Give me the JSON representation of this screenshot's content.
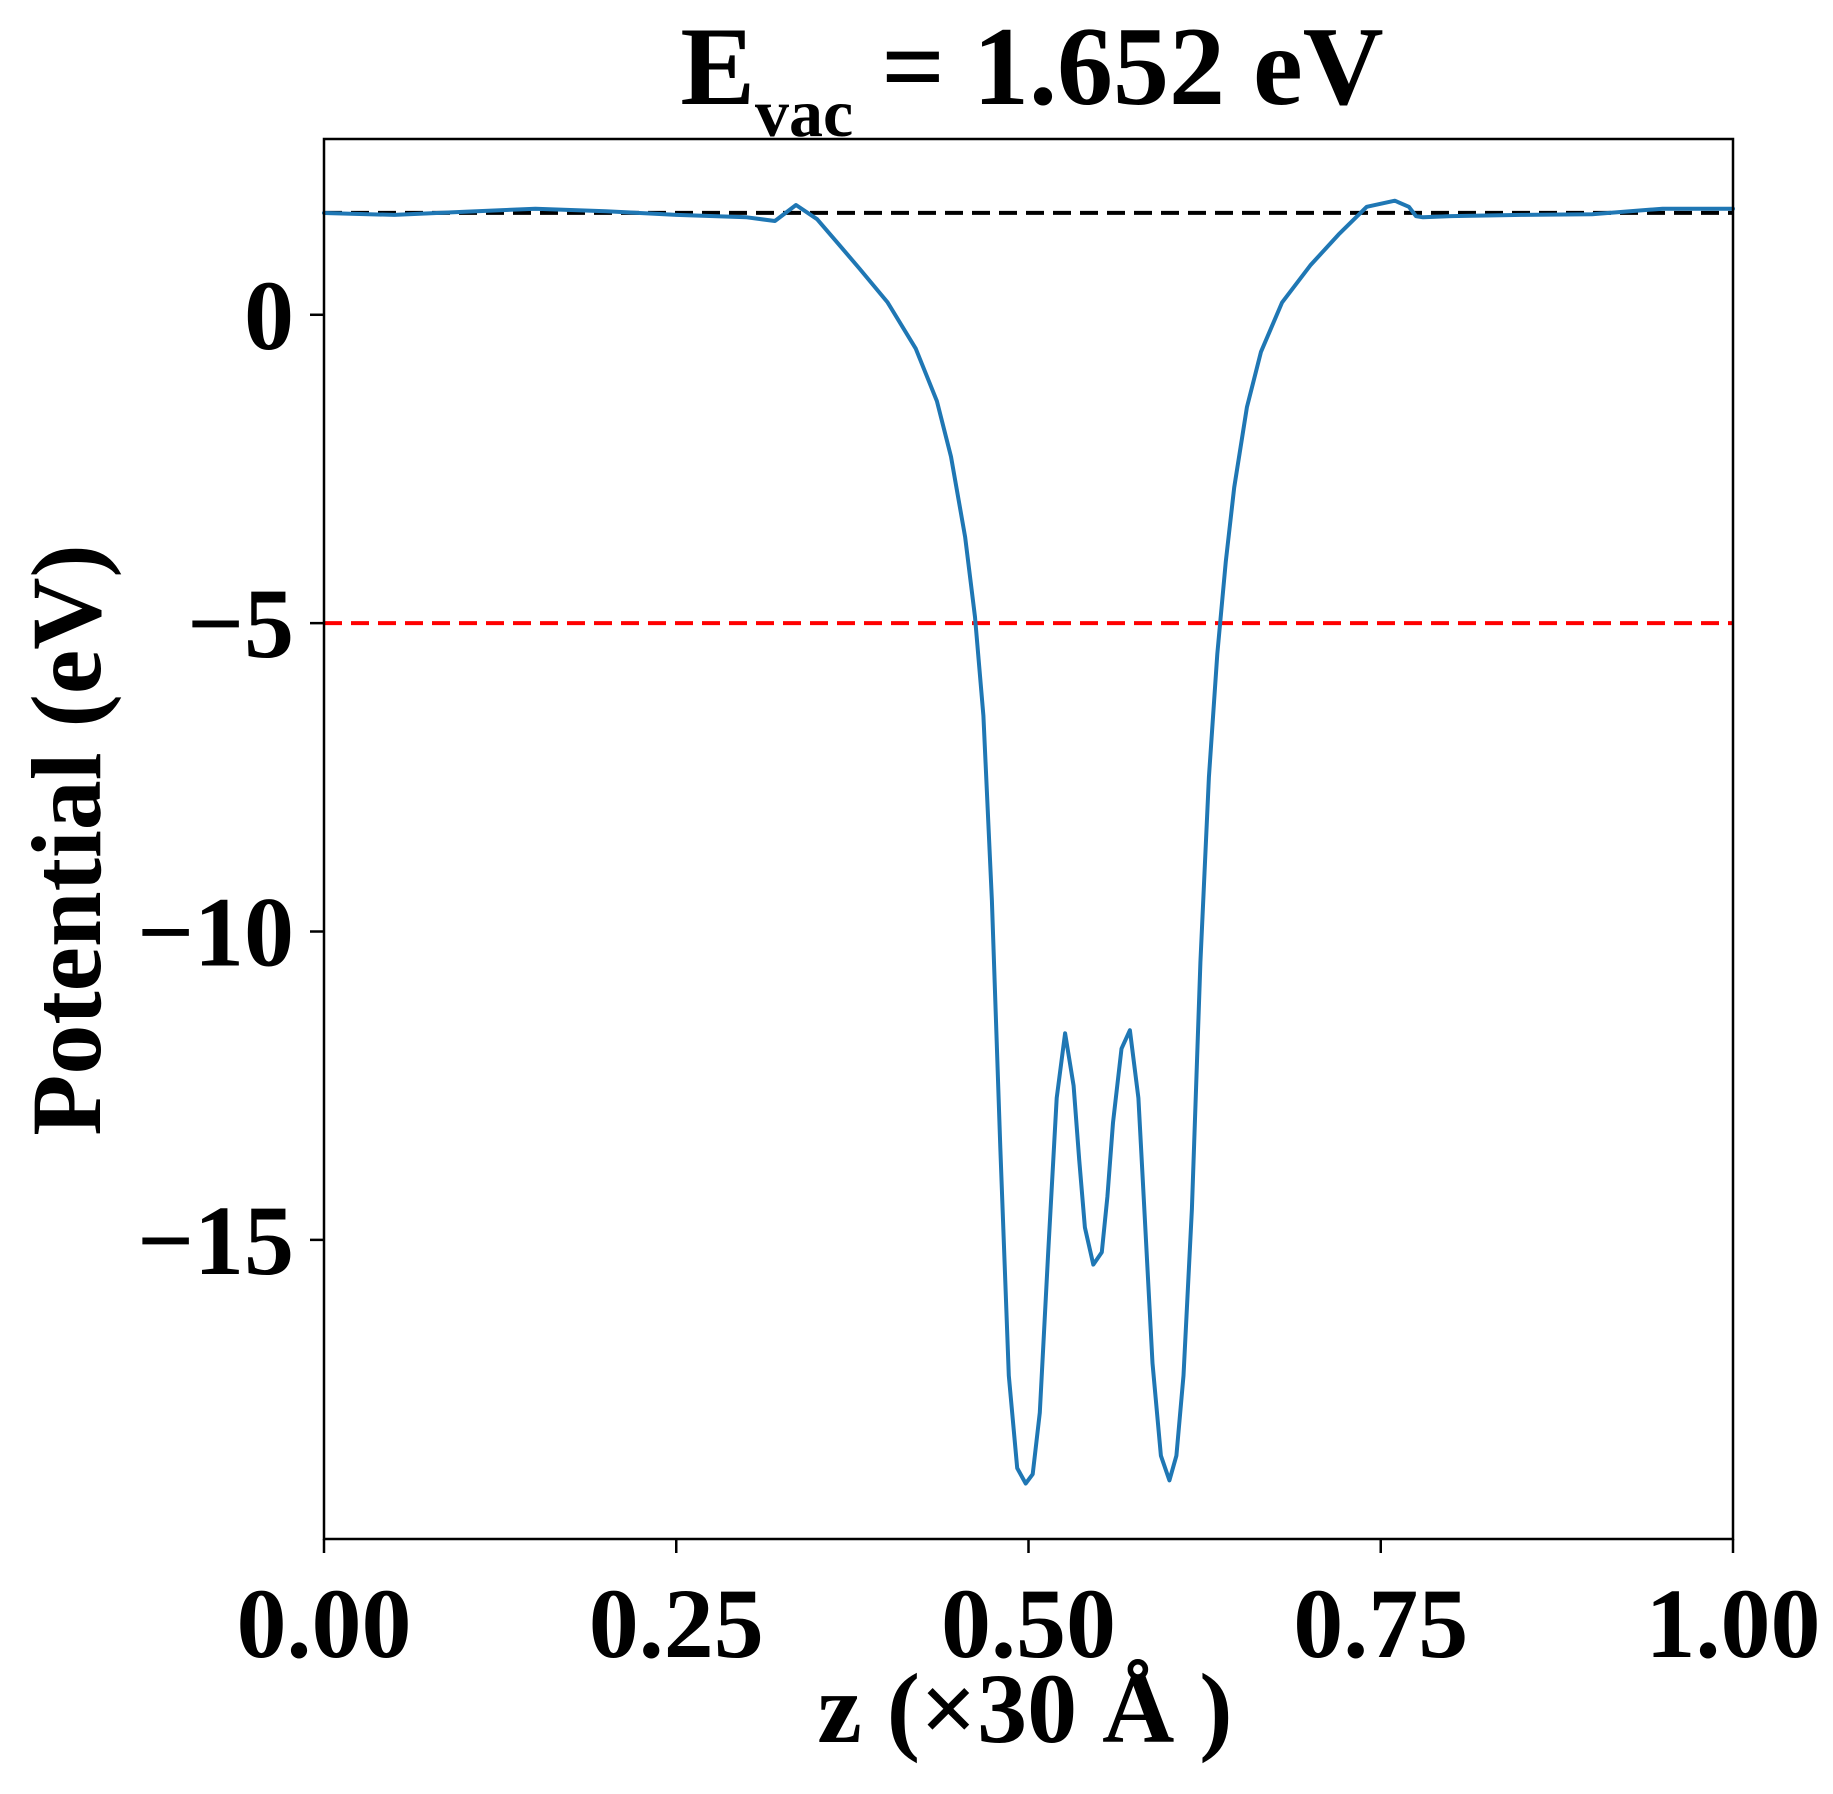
{
  "chart_data": {
    "type": "line",
    "title": {
      "main": "E",
      "subscript": "vac",
      "rest": " = 1.652 eV"
    },
    "xlabel": "z (×30 Å )",
    "ylabel": "Potential (eV)",
    "xlim": [
      0.0,
      1.0
    ],
    "ylim": [
      -19.85,
      2.85
    ],
    "x_ticks": [
      0.0,
      0.25,
      0.5,
      0.75,
      1.0
    ],
    "x_tick_labels": [
      "0.00",
      "0.25",
      "0.50",
      "0.75",
      "1.00"
    ],
    "y_ticks": [
      0,
      -5,
      -10,
      -15
    ],
    "y_tick_labels": [
      "0",
      "−5",
      "−10",
      "−15"
    ],
    "grid": false,
    "reference_lines": [
      {
        "y": 1.652,
        "color": "#000000",
        "style": "dashed"
      },
      {
        "y": -5.0,
        "color": "#ff0000",
        "style": "dashed"
      }
    ],
    "series": [
      {
        "color": "#1f77b4",
        "x": [
          0.0,
          0.05,
          0.1,
          0.15,
          0.2,
          0.25,
          0.3,
          0.32,
          0.335,
          0.35,
          0.365,
          0.38,
          0.4,
          0.42,
          0.435,
          0.445,
          0.455,
          0.462,
          0.468,
          0.474,
          0.48,
          0.486,
          0.492,
          0.498,
          0.503,
          0.508,
          0.514,
          0.52,
          0.526,
          0.532,
          0.536,
          0.54,
          0.546,
          0.552,
          0.556,
          0.56,
          0.566,
          0.572,
          0.578,
          0.582,
          0.588,
          0.594,
          0.6,
          0.605,
          0.61,
          0.616,
          0.622,
          0.628,
          0.634,
          0.64,
          0.646,
          0.655,
          0.665,
          0.68,
          0.7,
          0.72,
          0.74,
          0.76,
          0.77,
          0.775,
          0.78,
          0.8,
          0.85,
          0.9,
          0.95,
          1.0
        ],
        "y": [
          1.65,
          1.62,
          1.67,
          1.72,
          1.68,
          1.62,
          1.58,
          1.52,
          1.78,
          1.55,
          1.15,
          0.75,
          0.2,
          -0.55,
          -1.4,
          -2.3,
          -3.6,
          -4.9,
          -6.5,
          -9.5,
          -13.5,
          -17.2,
          -18.7,
          -18.95,
          -18.8,
          -17.8,
          -15.2,
          -12.7,
          -11.65,
          -12.5,
          -13.7,
          -14.8,
          -15.4,
          -15.2,
          -14.3,
          -13.1,
          -11.9,
          -11.6,
          -12.7,
          -14.4,
          -17.0,
          -18.5,
          -18.9,
          -18.5,
          -17.2,
          -14.5,
          -10.5,
          -7.5,
          -5.5,
          -4.0,
          -2.8,
          -1.5,
          -0.6,
          0.2,
          0.8,
          1.3,
          1.75,
          1.85,
          1.75,
          1.6,
          1.58,
          1.6,
          1.62,
          1.63,
          1.72,
          1.72
        ]
      }
    ]
  }
}
